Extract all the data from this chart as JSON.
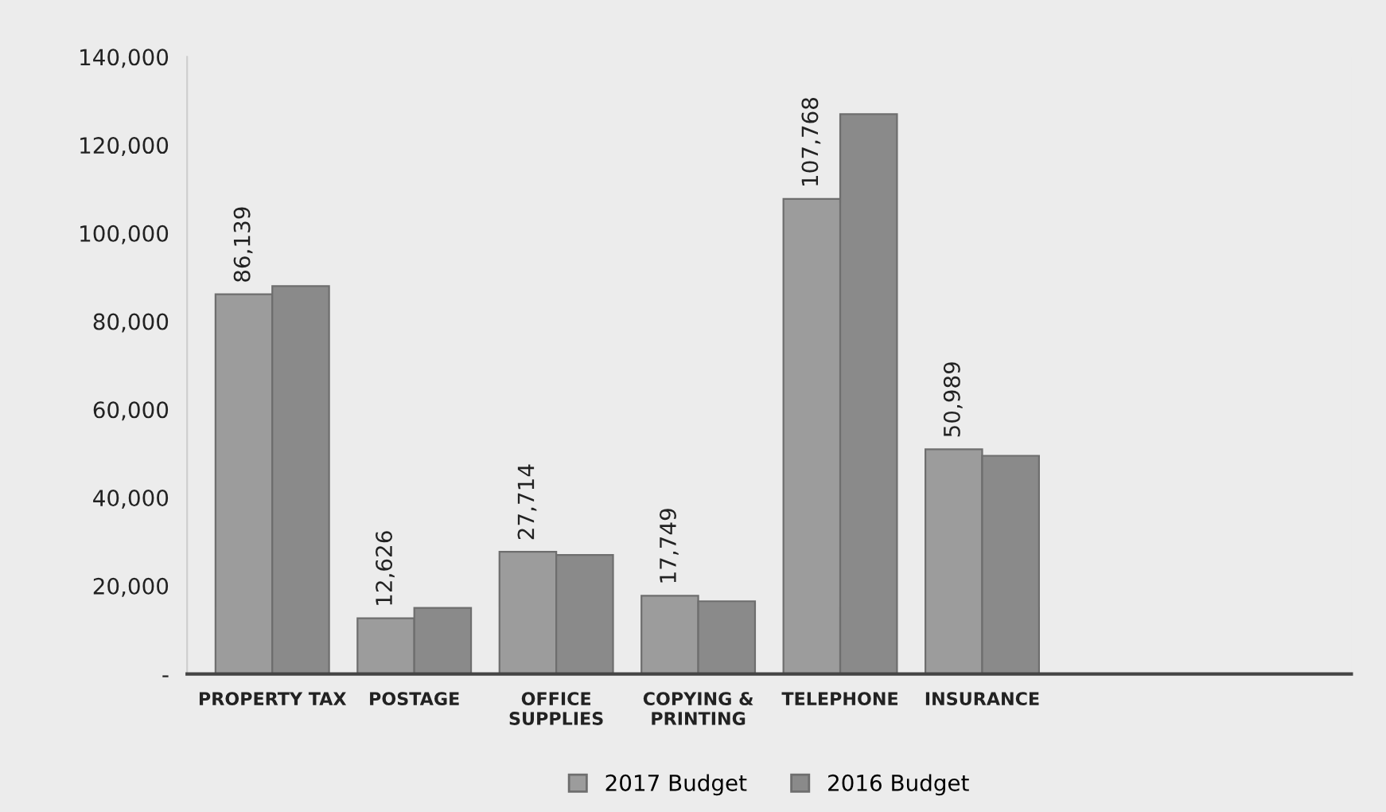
{
  "chart_data": {
    "type": "bar",
    "categories": [
      "PROPERTY TAX",
      "POSTAGE",
      "OFFICE\nSUPPLIES",
      "COPYING &\nPRINTING",
      "TELEPHONE",
      "INSURANCE"
    ],
    "series": [
      {
        "name": "2017 Budget",
        "color": "#9c9c9c",
        "values": [
          86139,
          12626,
          27714,
          17749,
          107768,
          50989
        ],
        "value_labels": [
          "86,139",
          "12,626",
          "27,714",
          "17,749",
          "107,768",
          "50,989"
        ]
      },
      {
        "name": "2016 Budget",
        "color": "#8a8a8a",
        "values": [
          88000,
          15000,
          27000,
          16500,
          127000,
          49500
        ]
      }
    ],
    "ylim": [
      0,
      140000
    ],
    "yticks": [
      {
        "value": 0,
        "label": "-"
      },
      {
        "value": 20000,
        "label": "20,000"
      },
      {
        "value": 40000,
        "label": "40,000"
      },
      {
        "value": 60000,
        "label": "60,000"
      },
      {
        "value": 80000,
        "label": "80,000"
      },
      {
        "value": 100000,
        "label": "100,000"
      },
      {
        "value": 120000,
        "label": "120,000"
      },
      {
        "value": 140000,
        "label": "140,000"
      }
    ],
    "grid": false,
    "legend": "bottom"
  }
}
